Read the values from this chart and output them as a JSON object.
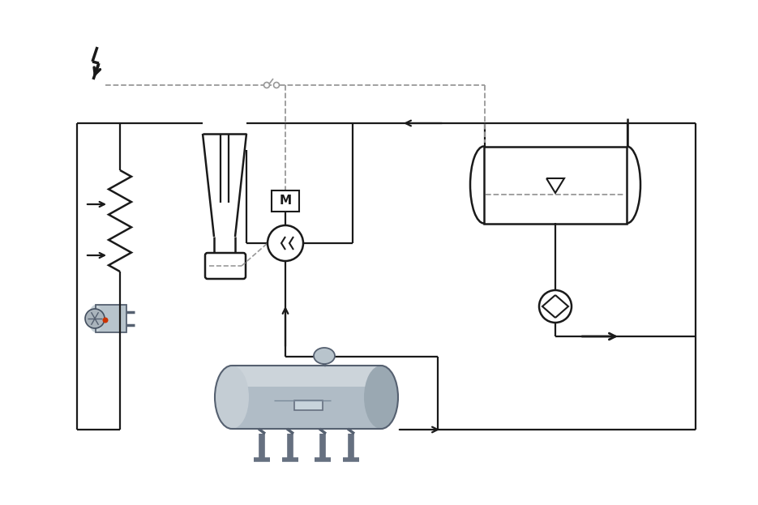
{
  "bg_color": "#ffffff",
  "line_color": "#1a1a1a",
  "dashed_color": "#999999",
  "figsize": [
    9.35,
    6.23
  ],
  "dpi": 100,
  "lw_main": 1.6,
  "lw_dash": 1.3
}
